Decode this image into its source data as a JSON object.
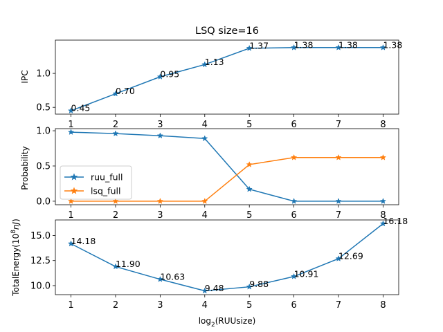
{
  "chart_data": [
    {
      "type": "line",
      "title": "LSQ  size=16",
      "ylabel": "IPC",
      "xlabel": "",
      "x": [
        1,
        2,
        3,
        4,
        5,
        6,
        7,
        8
      ],
      "ylim": [
        0.4,
        1.49
      ],
      "yticks": [
        0.5,
        1.0
      ],
      "ytick_labels": [
        "0.5",
        "1.0"
      ],
      "series": [
        {
          "name": "",
          "color": "#1f77b4",
          "marker": "star",
          "values": [
            0.45,
            0.7,
            0.95,
            1.13,
            1.37,
            1.38,
            1.38,
            1.38
          ]
        }
      ],
      "annotations": [
        "0.45",
        "0.70",
        "0.95",
        "1.13",
        "1.37",
        "1.38",
        "1.38",
        "1.38"
      ]
    },
    {
      "type": "line",
      "title": "",
      "ylabel": "Probability",
      "xlabel": "",
      "x": [
        1,
        2,
        3,
        4,
        5,
        6,
        7,
        8
      ],
      "ylim": [
        -0.05,
        1.03
      ],
      "yticks": [
        0.0,
        0.5,
        1.0
      ],
      "ytick_labels": [
        "0.0",
        "0.5",
        "1.0"
      ],
      "legend": "center-left",
      "series": [
        {
          "name": "ruu_full",
          "color": "#1f77b4",
          "marker": "star",
          "values": [
            0.98,
            0.96,
            0.93,
            0.89,
            0.17,
            0.0,
            0.0,
            0.0
          ]
        },
        {
          "name": "lsq_full",
          "color": "#ff7f0e",
          "marker": "star",
          "values": [
            0.0,
            0.0,
            0.0,
            0.0,
            0.52,
            0.62,
            0.62,
            0.62
          ]
        }
      ]
    },
    {
      "type": "line",
      "title": "",
      "ylabel_main": "TotalEnergy(10",
      "ylabel_sup": "8",
      "ylabel_unit": "nJ",
      "ylabel_end": ")",
      "xlabel_main": "log",
      "xlabel_sub": "2",
      "xlabel_end": "(RUUsize)",
      "x": [
        1,
        2,
        3,
        4,
        5,
        6,
        7,
        8
      ],
      "ylim": [
        9.1,
        16.55
      ],
      "yticks": [
        10.0,
        12.5,
        15.0
      ],
      "ytick_labels": [
        "10.0",
        "12.5",
        "15.0"
      ],
      "series": [
        {
          "name": "",
          "color": "#1f77b4",
          "marker": "star",
          "values": [
            14.18,
            11.9,
            10.63,
            9.48,
            9.88,
            10.91,
            12.69,
            16.18
          ]
        }
      ],
      "annotations": [
        "14.18",
        "11.90",
        "10.63",
        "9.48",
        "9.88",
        "10.91",
        "12.69",
        "16.18"
      ]
    }
  ],
  "x_tick_labels": [
    "1",
    "2",
    "3",
    "4",
    "5",
    "6",
    "7",
    "8"
  ]
}
